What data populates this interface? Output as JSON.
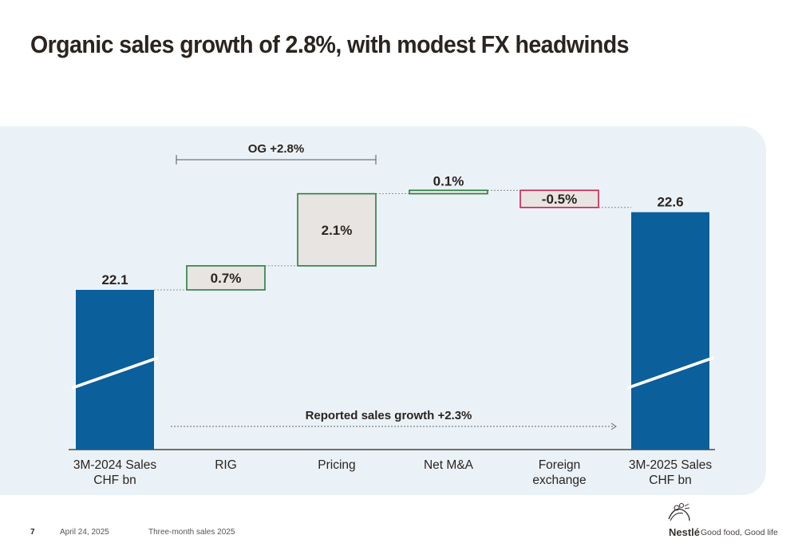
{
  "page": {
    "title": "Organic sales growth of 2.8%, with modest FX headwinds"
  },
  "footer": {
    "page_number": "7",
    "date": "April 24, 2025",
    "document": "Three-month sales 2025",
    "brand": "Nestlé",
    "tagline": "Good food, Good life"
  },
  "colors": {
    "total_bar": "#0b5f9a",
    "positive_border": "#2a7d3f",
    "negative_border": "#c9214f",
    "step_fill": "#e8e4e1",
    "panel": "#eaf2f7"
  },
  "chart_data": {
    "type": "waterfall",
    "title": "Organic sales growth of 2.8%, with modest FX headwinds",
    "unit": "CHF bn / %",
    "categories": [
      "3M-2024 Sales CHF bn",
      "RIG",
      "Pricing",
      "Net M&A",
      "Foreign exchange",
      "3M-2025 Sales CHF bn"
    ],
    "steps": [
      {
        "category": "3M-2024 Sales CHF bn",
        "kind": "total",
        "value": 22.1,
        "label": "22.1",
        "axis_lines": [
          "3M-2024 Sales",
          "CHF bn"
        ]
      },
      {
        "category": "RIG",
        "kind": "increase",
        "value": 0.7,
        "label": "0.7%",
        "axis_lines": [
          "RIG"
        ]
      },
      {
        "category": "Pricing",
        "kind": "increase",
        "value": 2.1,
        "label": "2.1%",
        "axis_lines": [
          "Pricing"
        ]
      },
      {
        "category": "Net M&A",
        "kind": "increase",
        "value": 0.1,
        "label": "0.1%",
        "axis_lines": [
          "Net M&A"
        ]
      },
      {
        "category": "Foreign exchange",
        "kind": "decrease",
        "value": -0.5,
        "label": "-0.5%",
        "axis_lines": [
          "Foreign",
          "exchange"
        ]
      },
      {
        "category": "3M-2025 Sales CHF bn",
        "kind": "total",
        "value": 22.6,
        "label": "22.6",
        "axis_lines": [
          "3M-2025 Sales",
          "CHF bn"
        ]
      }
    ],
    "annotations": {
      "organic_growth": "OG +2.8%",
      "reported_growth": "Reported sales growth +2.3%"
    },
    "axis_break": true,
    "ylim_display": [
      20.0,
      22.9
    ]
  }
}
